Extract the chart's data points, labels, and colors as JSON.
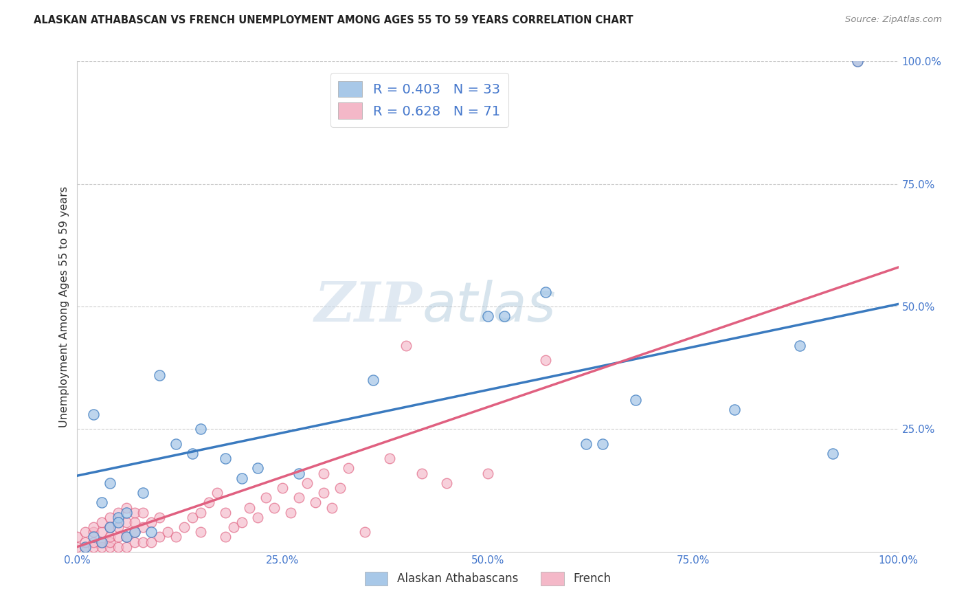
{
  "title": "ALASKAN ATHABASCAN VS FRENCH UNEMPLOYMENT AMONG AGES 55 TO 59 YEARS CORRELATION CHART",
  "source": "Source: ZipAtlas.com",
  "ylabel": "Unemployment Among Ages 55 to 59 years",
  "xlim": [
    0.0,
    1.0
  ],
  "ylim": [
    0.0,
    1.0
  ],
  "xtick_labels": [
    "0.0%",
    "25.0%",
    "50.0%",
    "75.0%",
    "100.0%"
  ],
  "xtick_positions": [
    0.0,
    0.25,
    0.5,
    0.75,
    1.0
  ],
  "ytick_labels": [
    "25.0%",
    "50.0%",
    "75.0%",
    "100.0%"
  ],
  "ytick_positions": [
    0.25,
    0.5,
    0.75,
    1.0
  ],
  "blue_r": 0.403,
  "blue_n": 33,
  "pink_r": 0.628,
  "pink_n": 71,
  "blue_color": "#a8c8e8",
  "pink_color": "#f4b8c8",
  "blue_line_color": "#3a7abf",
  "pink_line_color": "#e06080",
  "watermark_zip": "ZIP",
  "watermark_atlas": "atlas",
  "legend_labels": [
    "Alaskan Athabascans",
    "French"
  ],
  "blue_x": [
    0.01,
    0.02,
    0.03,
    0.03,
    0.04,
    0.05,
    0.06,
    0.06,
    0.07,
    0.02,
    0.04,
    0.08,
    0.09,
    0.12,
    0.14,
    0.18,
    0.2,
    0.22,
    0.27,
    0.36,
    0.5,
    0.52,
    0.57,
    0.62,
    0.64,
    0.68,
    0.8,
    0.88,
    0.92,
    0.95,
    0.05,
    0.1,
    0.15
  ],
  "blue_y": [
    0.01,
    0.03,
    0.02,
    0.1,
    0.05,
    0.07,
    0.03,
    0.08,
    0.04,
    0.28,
    0.14,
    0.12,
    0.04,
    0.22,
    0.2,
    0.19,
    0.15,
    0.17,
    0.16,
    0.35,
    0.48,
    0.48,
    0.53,
    0.22,
    0.22,
    0.31,
    0.29,
    0.42,
    0.2,
    1.0,
    0.06,
    0.36,
    0.25
  ],
  "pink_x": [
    0.0,
    0.0,
    0.01,
    0.01,
    0.01,
    0.02,
    0.02,
    0.02,
    0.02,
    0.03,
    0.03,
    0.03,
    0.03,
    0.04,
    0.04,
    0.04,
    0.04,
    0.04,
    0.05,
    0.05,
    0.05,
    0.05,
    0.06,
    0.06,
    0.06,
    0.06,
    0.07,
    0.07,
    0.07,
    0.07,
    0.08,
    0.08,
    0.08,
    0.09,
    0.09,
    0.1,
    0.1,
    0.11,
    0.12,
    0.13,
    0.14,
    0.15,
    0.15,
    0.16,
    0.17,
    0.18,
    0.18,
    0.19,
    0.2,
    0.21,
    0.22,
    0.23,
    0.24,
    0.25,
    0.26,
    0.27,
    0.28,
    0.29,
    0.3,
    0.3,
    0.31,
    0.32,
    0.33,
    0.35,
    0.38,
    0.4,
    0.42,
    0.45,
    0.5,
    0.57,
    0.95
  ],
  "pink_y": [
    0.01,
    0.03,
    0.01,
    0.02,
    0.04,
    0.01,
    0.02,
    0.04,
    0.05,
    0.01,
    0.02,
    0.04,
    0.06,
    0.01,
    0.02,
    0.03,
    0.05,
    0.07,
    0.01,
    0.03,
    0.05,
    0.08,
    0.01,
    0.03,
    0.06,
    0.09,
    0.02,
    0.04,
    0.06,
    0.08,
    0.02,
    0.05,
    0.08,
    0.02,
    0.06,
    0.03,
    0.07,
    0.04,
    0.03,
    0.05,
    0.07,
    0.04,
    0.08,
    0.1,
    0.12,
    0.03,
    0.08,
    0.05,
    0.06,
    0.09,
    0.07,
    0.11,
    0.09,
    0.13,
    0.08,
    0.11,
    0.14,
    0.1,
    0.12,
    0.16,
    0.09,
    0.13,
    0.17,
    0.04,
    0.19,
    0.42,
    0.16,
    0.14,
    0.16,
    0.39,
    1.0
  ],
  "blue_line_x0": 0.0,
  "blue_line_y0": 0.155,
  "blue_line_x1": 1.0,
  "blue_line_y1": 0.505,
  "pink_line_x0": 0.0,
  "pink_line_y0": 0.01,
  "pink_line_x1": 1.0,
  "pink_line_y1": 0.58
}
